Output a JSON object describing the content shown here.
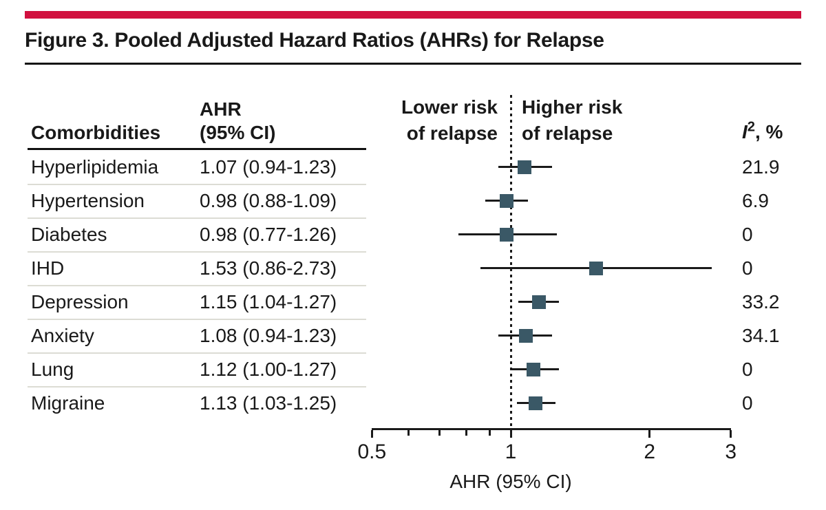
{
  "figure": {
    "accent_color": "#d1103f",
    "marker_color": "#3a5866"
  },
  "columns": {
    "comorbidities": "Comorbidities",
    "ahr_line1": "AHR",
    "ahr_line2": "(95% CI)",
    "lower_risk_line1": "Lower risk",
    "lower_risk_line2": "of relapse",
    "higher_risk_line1": "Higher risk",
    "higher_risk_line2": "of relapse",
    "i2_italic": "I",
    "i2_sup": "2",
    "i2_rest": ", %"
  },
  "chart_data": {
    "type": "forest",
    "title": "Figure 3. Pooled Adjusted Hazard Ratios (AHRs) for Relapse",
    "xlabel": "AHR (95% CI)",
    "x_scale": "log",
    "xlim": [
      0.5,
      3
    ],
    "reference_line": 1,
    "x_major_ticks": [
      "0.5",
      "1",
      "2",
      "3"
    ],
    "x_major_tick_values": [
      0.5,
      1,
      2,
      3
    ],
    "x_minor_tick_values": [
      0.6,
      0.7,
      0.8,
      0.9
    ],
    "region_labels": {
      "left_of_reference": "Lower risk of relapse",
      "right_of_reference": "Higher risk of relapse"
    },
    "columns": [
      "Comorbidities",
      "AHR (95% CI)",
      "I2, %"
    ],
    "rows": [
      {
        "label": "Hyperlipidemia",
        "ahr_text": "1.07 (0.94-1.23)",
        "estimate": 1.07,
        "ci_lower": 0.94,
        "ci_upper": 1.23,
        "i2": "21.9"
      },
      {
        "label": "Hypertension",
        "ahr_text": "0.98 (0.88-1.09)",
        "estimate": 0.98,
        "ci_lower": 0.88,
        "ci_upper": 1.09,
        "i2": "6.9"
      },
      {
        "label": "Diabetes",
        "ahr_text": "0.98 (0.77-1.26)",
        "estimate": 0.98,
        "ci_lower": 0.77,
        "ci_upper": 1.26,
        "i2": "0"
      },
      {
        "label": "IHD",
        "ahr_text": "1.53 (0.86-2.73)",
        "estimate": 1.53,
        "ci_lower": 0.86,
        "ci_upper": 2.73,
        "i2": "0"
      },
      {
        "label": "Depression",
        "ahr_text": "1.15 (1.04-1.27)",
        "estimate": 1.15,
        "ci_lower": 1.04,
        "ci_upper": 1.27,
        "i2": "33.2"
      },
      {
        "label": "Anxiety",
        "ahr_text": "1.08 (0.94-1.23)",
        "estimate": 1.08,
        "ci_lower": 0.94,
        "ci_upper": 1.23,
        "i2": "34.1"
      },
      {
        "label": "Lung",
        "ahr_text": "1.12 (1.00-1.27)",
        "estimate": 1.12,
        "ci_lower": 1.0,
        "ci_upper": 1.27,
        "i2": "0"
      },
      {
        "label": "Migraine",
        "ahr_text": "1.13 (1.03-1.25)",
        "estimate": 1.13,
        "ci_lower": 1.03,
        "ci_upper": 1.25,
        "i2": "0"
      }
    ]
  }
}
